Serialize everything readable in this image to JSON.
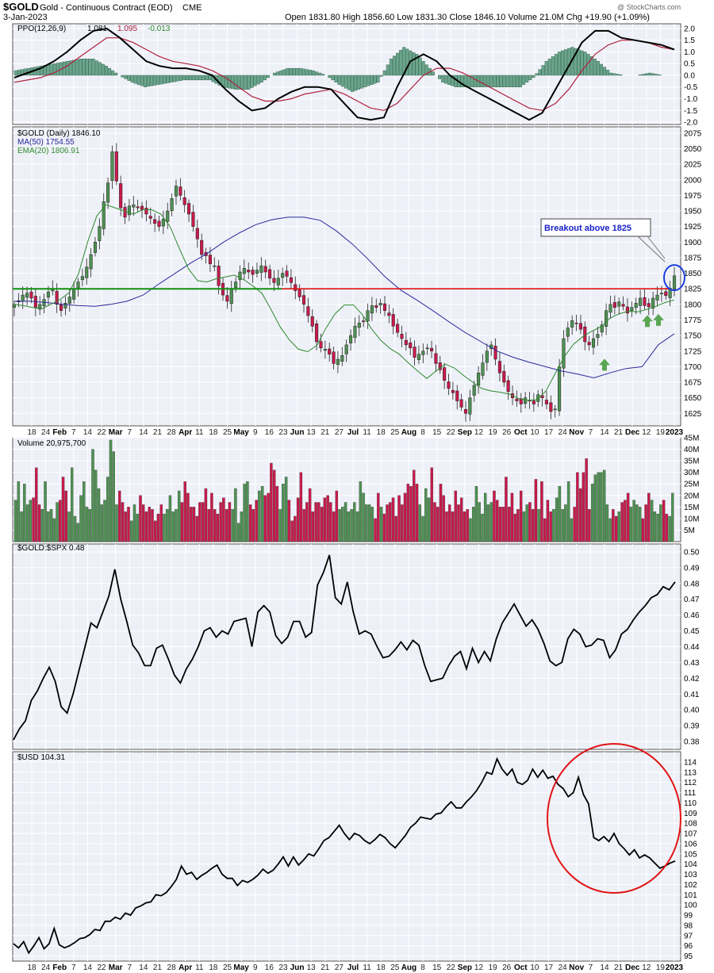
{
  "header": {
    "symbol": "$GOLD",
    "name": "Gold - Continuous Contract (EOD)",
    "exchange": "CME",
    "date": "3-Jan-2023",
    "ohlc": "Open 1831.80  High 1856.60  Low 1831.30  Close 1846.10  Volume 21.0M  Chg +19.90 (+1.09%)",
    "watermark": "@ StockCharts.com"
  },
  "colors": {
    "up": "#4e9152",
    "down": "#c9194b",
    "panel_bg": "#eef0f8",
    "grid": "#ffffff",
    "ma50": "#2a2a9a",
    "ema20": "#2d8a2d",
    "support": "#10900f",
    "resistance": "#e01414",
    "ppo_signal": "#b0203c",
    "callout": "#1a22c8",
    "circle": "#e01414"
  },
  "chart_data": [
    {
      "type": "line",
      "panel": "PPO",
      "legend": [
        "PPO(12,26,9)",
        "1.081",
        "1.095",
        "-0.013"
      ],
      "series": [
        {
          "role": "ppo",
          "values": [
            -0.1,
            0.1,
            0.3,
            0.6,
            1.0,
            1.5,
            1.9,
            2.0,
            1.6,
            1.1,
            0.6,
            0.4,
            0.3,
            0.3,
            0.2,
            0.0,
            -0.6,
            -1.1,
            -1.5,
            -1.4,
            -1.0,
            -0.7,
            -0.5,
            -0.5,
            -0.6,
            -1.2,
            -1.8,
            -1.9,
            -1.8,
            -0.5,
            0.6,
            0.9,
            0.6,
            0.0,
            -0.4,
            -0.7,
            -1.0,
            -1.3,
            -1.6,
            -1.9,
            -1.6,
            -0.6,
            0.4,
            1.4,
            1.9,
            1.9,
            1.6,
            1.5,
            1.4,
            1.3,
            1.1
          ]
        },
        {
          "role": "signal",
          "values": [
            -0.3,
            -0.2,
            -0.1,
            0.1,
            0.4,
            0.8,
            1.2,
            1.6,
            1.6,
            1.4,
            1.1,
            0.8,
            0.6,
            0.5,
            0.4,
            0.2,
            -0.1,
            -0.5,
            -0.9,
            -1.1,
            -1.1,
            -1.0,
            -0.8,
            -0.7,
            -0.6,
            -0.8,
            -1.1,
            -1.4,
            -1.5,
            -1.2,
            -0.6,
            0.0,
            0.3,
            0.3,
            0.1,
            -0.2,
            -0.5,
            -0.8,
            -1.1,
            -1.4,
            -1.5,
            -1.2,
            -0.6,
            0.2,
            0.9,
            1.3,
            1.5,
            1.5,
            1.4,
            1.2,
            1.1
          ]
        },
        {
          "role": "histogram",
          "values": [
            0.2,
            0.3,
            0.4,
            0.5,
            0.6,
            0.7,
            0.7,
            0.4,
            0.0,
            -0.3,
            -0.5,
            -0.4,
            -0.3,
            -0.2,
            -0.2,
            -0.2,
            -0.5,
            -0.6,
            -0.6,
            -0.3,
            0.1,
            0.3,
            0.3,
            0.2,
            0.0,
            -0.4,
            -0.7,
            -0.5,
            -0.3,
            0.7,
            1.2,
            0.9,
            0.3,
            -0.3,
            -0.5,
            -0.5,
            -0.5,
            -0.5,
            -0.5,
            -0.5,
            -0.1,
            0.6,
            1.0,
            1.2,
            1.0,
            0.6,
            0.1,
            0.0,
            0.0,
            0.1,
            0.0
          ]
        }
      ],
      "yticks": [
        2.0,
        1.5,
        1.0,
        0.5,
        0.0,
        -0.5,
        -1.0,
        -1.5,
        -2.0
      ],
      "ytick_labels": [
        "2.0",
        "1.5",
        "1.0",
        "0.5",
        "0.0",
        "-0.5",
        "-1.0",
        "-1.5",
        "-2.0"
      ],
      "ylim": [
        -2.1,
        2.2
      ]
    },
    {
      "type": "candlestick",
      "panel": "$GOLD (Daily)",
      "legend": {
        "title": "$GOLD (Daily) 1846.10",
        "ma50": "MA(50) 1754.55",
        "ema20": "EMA(20) 1806.91"
      },
      "closes": [
        1800,
        1806,
        1815,
        1818,
        1810,
        1795,
        1800,
        1808,
        1820,
        1825,
        1800,
        1790,
        1802,
        1812,
        1825,
        1836,
        1845,
        1860,
        1880,
        1900,
        1925,
        1965,
        1995,
        2045,
        1998,
        1955,
        1940,
        1958,
        1960,
        1955,
        1952,
        1945,
        1938,
        1930,
        1925,
        1937,
        1950,
        1970,
        1990,
        1975,
        1960,
        1945,
        1925,
        1905,
        1880,
        1878,
        1865,
        1862,
        1830,
        1815,
        1805,
        1825,
        1836,
        1852,
        1858,
        1852,
        1848,
        1855,
        1862,
        1852,
        1842,
        1835,
        1842,
        1850,
        1845,
        1835,
        1822,
        1812,
        1800,
        1782,
        1765,
        1740,
        1730,
        1728,
        1720,
        1705,
        1712,
        1718,
        1735,
        1750,
        1765,
        1770,
        1772,
        1790,
        1798,
        1795,
        1802,
        1790,
        1782,
        1765,
        1755,
        1745,
        1735,
        1730,
        1715,
        1720,
        1725,
        1730,
        1725,
        1705,
        1695,
        1678,
        1665,
        1658,
        1645,
        1635,
        1625,
        1650,
        1670,
        1690,
        1706,
        1725,
        1735,
        1712,
        1690,
        1675,
        1660,
        1650,
        1645,
        1640,
        1650,
        1645,
        1640,
        1655,
        1650,
        1640,
        1628,
        1632,
        1700,
        1745,
        1762,
        1774,
        1770,
        1760,
        1740,
        1735,
        1745,
        1752,
        1767,
        1790,
        1800,
        1795,
        1804,
        1797,
        1786,
        1795,
        1802,
        1810,
        1798,
        1796,
        1810,
        1815,
        1818,
        1814,
        1826,
        1846
      ],
      "ma50": [
        1805,
        1805,
        1803,
        1800,
        1798,
        1797,
        1800,
        1805,
        1815,
        1833,
        1850,
        1867,
        1882,
        1900,
        1915,
        1928,
        1936,
        1940,
        1940,
        1935,
        1918,
        1897,
        1872,
        1845,
        1823,
        1807,
        1790,
        1772,
        1755,
        1740,
        1725,
        1715,
        1707,
        1700,
        1693,
        1688,
        1682,
        1690,
        1697,
        1700,
        1735,
        1753
      ],
      "ema20": [
        1800,
        1798,
        1795,
        1793,
        1800,
        1808,
        1819,
        1849,
        1900,
        1942,
        1960,
        1955,
        1950,
        1945,
        1952,
        1952,
        1945,
        1925,
        1890,
        1857,
        1838,
        1836,
        1841,
        1844,
        1847,
        1840,
        1830,
        1818,
        1792,
        1764,
        1743,
        1728,
        1724,
        1734,
        1762,
        1785,
        1799,
        1799,
        1783,
        1760,
        1742,
        1729,
        1720,
        1706,
        1693,
        1681,
        1693,
        1704,
        1698,
        1686,
        1675,
        1665,
        1661,
        1659,
        1656,
        1649,
        1646,
        1647,
        1661,
        1689,
        1716,
        1736,
        1748,
        1757,
        1764,
        1778,
        1785,
        1789,
        1788,
        1792,
        1797,
        1803,
        1807
      ],
      "support_level": 1825,
      "resistance_level": 1825,
      "annotation": "Breakout above 1825",
      "yticks": [
        2075,
        2050,
        2025,
        2000,
        1975,
        1950,
        1925,
        1900,
        1875,
        1850,
        1825,
        1800,
        1775,
        1750,
        1725,
        1700,
        1675,
        1650,
        1625
      ],
      "ytick_labels": [
        "2075",
        "2050",
        "2025",
        "2000",
        "1975",
        "1950",
        "1925",
        "1900",
        "1875",
        "1850",
        "1825",
        "1800",
        "1775",
        "1750",
        "1725",
        "1700",
        "1675",
        "1650",
        "1625"
      ],
      "ylim": [
        1605,
        2085
      ],
      "xticks": [
        "18",
        "24",
        "Feb",
        "7",
        "14",
        "22",
        "Mar",
        "7",
        "14",
        "21",
        "28",
        "Apr",
        "11",
        "18",
        "25",
        "May",
        "9",
        "16",
        "23",
        "Jun",
        "13",
        "21",
        "27",
        "Jul",
        "11",
        "18",
        "25",
        "Aug",
        "8",
        "15",
        "22",
        "Sep",
        "12",
        "19",
        "26",
        "Oct",
        "10",
        "17",
        "24",
        "Nov",
        "7",
        "14",
        "21",
        "Dec",
        "12",
        "19",
        "2023"
      ]
    },
    {
      "type": "bar",
      "panel": "Volume",
      "legend": "Volume 20,975,700",
      "values": [
        18,
        26,
        13,
        25,
        16,
        18,
        19,
        32,
        16,
        14,
        26,
        13,
        14,
        10,
        17,
        18,
        28,
        22,
        13,
        32,
        11,
        8,
        20,
        26,
        15,
        14,
        40,
        31,
        23,
        16,
        18,
        28,
        44,
        39,
        16,
        22,
        17,
        13,
        15,
        9,
        16,
        12,
        20,
        16,
        13,
        15,
        14,
        9,
        12,
        16,
        12,
        14,
        20,
        13,
        14,
        22,
        17,
        26,
        21,
        15,
        15,
        11,
        17,
        17,
        23,
        14,
        21,
        14,
        12,
        17,
        19,
        14,
        17,
        14,
        23,
        8,
        13,
        25,
        26,
        16,
        14,
        18,
        22,
        24,
        20,
        21,
        34,
        31,
        24,
        14,
        25,
        28,
        18,
        9,
        11,
        19,
        30,
        14,
        17,
        23,
        13,
        17,
        17,
        15,
        19,
        20,
        17,
        13,
        22,
        14,
        15,
        17,
        13,
        14,
        17,
        13,
        26,
        21,
        16,
        16,
        15,
        10,
        21,
        15,
        12,
        16,
        17,
        19,
        11,
        20,
        16,
        21,
        25,
        24,
        31,
        25,
        16,
        11,
        23,
        19,
        32,
        17,
        15,
        25,
        20,
        13,
        16,
        13,
        22,
        16,
        19,
        13,
        14,
        10,
        15,
        24,
        17,
        12,
        21,
        16,
        17,
        22,
        18,
        15,
        15,
        28,
        15,
        21,
        12,
        14,
        22,
        13,
        16,
        17,
        14,
        27,
        14,
        26,
        10,
        18,
        13,
        14,
        19,
        24,
        14,
        16,
        26,
        10,
        15,
        30,
        23,
        30,
        36,
        14,
        25,
        29,
        30,
        30,
        31,
        16,
        10,
        14,
        11,
        13,
        17,
        18,
        21,
        15,
        18,
        16,
        15,
        10,
        16,
        21,
        18,
        13,
        12,
        16,
        18,
        12,
        11,
        21
      ],
      "ytick_labels": [
        "45M",
        "40M",
        "35M",
        "30M",
        "25M",
        "20M",
        "15M",
        "10M",
        "5M"
      ],
      "yticks": [
        45,
        40,
        35,
        30,
        25,
        20,
        15,
        10,
        5
      ],
      "ylim": [
        0,
        45
      ]
    },
    {
      "type": "line",
      "panel": "$GOLD:$SPX",
      "legend": "$GOLD:$SPX 0.48",
      "values": [
        0.381,
        0.388,
        0.393,
        0.406,
        0.412,
        0.42,
        0.427,
        0.418,
        0.402,
        0.398,
        0.41,
        0.425,
        0.44,
        0.455,
        0.452,
        0.462,
        0.472,
        0.489,
        0.47,
        0.456,
        0.441,
        0.436,
        0.428,
        0.428,
        0.439,
        0.441,
        0.432,
        0.422,
        0.417,
        0.426,
        0.432,
        0.44,
        0.45,
        0.452,
        0.446,
        0.45,
        0.448,
        0.456,
        0.457,
        0.458,
        0.44,
        0.462,
        0.466,
        0.462,
        0.447,
        0.442,
        0.446,
        0.456,
        0.456,
        0.446,
        0.449,
        0.479,
        0.487,
        0.498,
        0.471,
        0.467,
        0.481,
        0.462,
        0.448,
        0.45,
        0.448,
        0.44,
        0.433,
        0.434,
        0.438,
        0.443,
        0.438,
        0.444,
        0.441,
        0.428,
        0.418,
        0.419,
        0.42,
        0.428,
        0.434,
        0.437,
        0.426,
        0.439,
        0.43,
        0.437,
        0.431,
        0.445,
        0.455,
        0.461,
        0.467,
        0.46,
        0.453,
        0.457,
        0.451,
        0.442,
        0.431,
        0.428,
        0.43,
        0.445,
        0.451,
        0.448,
        0.44,
        0.441,
        0.445,
        0.444,
        0.433,
        0.438,
        0.448,
        0.451,
        0.457,
        0.462,
        0.466,
        0.471,
        0.473,
        0.478,
        0.476,
        0.481
      ],
      "ytick_labels": [
        "0.50",
        "0.49",
        "0.48",
        "0.47",
        "0.46",
        "0.45",
        "0.44",
        "0.43",
        "0.42",
        "0.41",
        "0.40",
        "0.39",
        "0.38"
      ],
      "yticks": [
        0.5,
        0.49,
        0.48,
        0.47,
        0.46,
        0.45,
        0.44,
        0.43,
        0.42,
        0.41,
        0.4,
        0.39,
        0.38
      ],
      "ylim": [
        0.375,
        0.505
      ]
    },
    {
      "type": "line",
      "panel": "$USD",
      "legend": "$USD 104.31",
      "values": [
        96.2,
        95.8,
        96.4,
        95.3,
        96.0,
        96.8,
        95.7,
        96.2,
        97.7,
        96.1,
        95.8,
        96.0,
        96.3,
        96.7,
        96.8,
        97.1,
        97.6,
        97.5,
        98.4,
        98.4,
        98.8,
        98.6,
        99.2,
        99.0,
        99.7,
        99.9,
        100.2,
        100.3,
        101.0,
        100.9,
        101.2,
        101.8,
        102.5,
        103.8,
        103.0,
        103.2,
        102.5,
        102.9,
        103.2,
        103.6,
        103.9,
        103.0,
        102.6,
        102.6,
        101.9,
        102.4,
        102.2,
        102.5,
        102.9,
        103.5,
        103.1,
        103.4,
        104.0,
        104.7,
        103.8,
        104.7,
        103.9,
        104.4,
        105.0,
        104.8,
        105.5,
        106.3,
        106.6,
        107.2,
        107.8,
        107.0,
        106.4,
        107.0,
        106.8,
        106.3,
        106.0,
        106.4,
        106.9,
        106.6,
        106.0,
        105.6,
        106.2,
        106.8,
        107.6,
        108.0,
        108.6,
        108.5,
        108.4,
        108.9,
        109.0,
        109.6,
        110.1,
        109.5,
        109.5,
        110.1,
        110.6,
        111.2,
        112.0,
        113.0,
        112.8,
        114.3,
        113.3,
        112.7,
        113.3,
        112.0,
        111.8,
        112.2,
        113.3,
        112.5,
        113.2,
        112.4,
        112.6,
        111.8,
        111.4,
        110.6,
        111.0,
        112.5,
        110.8,
        109.9,
        106.6,
        106.3,
        106.7,
        106.2,
        107.0,
        106.0,
        105.5,
        104.9,
        105.4,
        104.6,
        104.9,
        104.6,
        104.1,
        103.6,
        103.8,
        104.1,
        104.3
      ],
      "ytick_labels": [
        "114",
        "113",
        "112",
        "111",
        "110",
        "109",
        "108",
        "107",
        "106",
        "105",
        "104",
        "103",
        "102",
        "101",
        "100",
        "99",
        "98",
        "97",
        "96",
        "95"
      ],
      "yticks": [
        114,
        113,
        112,
        111,
        110,
        109,
        108,
        107,
        106,
        105,
        104,
        103,
        102,
        101,
        100,
        99,
        98,
        97,
        96,
        95
      ],
      "ylim": [
        94.5,
        115.0
      ]
    }
  ]
}
